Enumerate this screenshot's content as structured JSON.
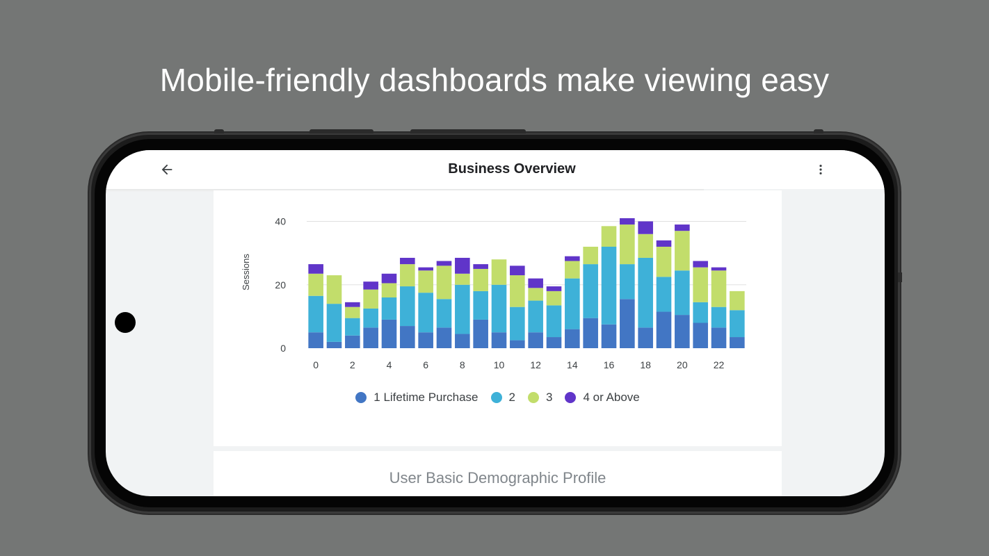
{
  "headline": "Mobile-friendly dashboards make viewing easy",
  "app_bar": {
    "title": "Business Overview",
    "back_icon": "arrow-back-icon",
    "menu_icon": "more-vert-icon"
  },
  "sections": {
    "demographic_title": "User Basic Demographic Profile"
  },
  "colors": {
    "series": [
      "#4276c4",
      "#3eb1d8",
      "#c2dd6b",
      "#6035c9"
    ],
    "background": "#747675",
    "grid": "#e0e0e0",
    "axis_text": "#3c4043"
  },
  "chart_data": {
    "type": "bar",
    "stacked": true,
    "ylabel": "Sessions",
    "xlabel": "",
    "ylim": [
      0,
      48
    ],
    "y_ticks": [
      "0",
      "20",
      "40"
    ],
    "grid": true,
    "legend_position": "bottom",
    "x_tick_labels": [
      "0",
      "2",
      "4",
      "6",
      "8",
      "10",
      "12",
      "14",
      "16",
      "18",
      "20",
      "22"
    ],
    "categories": [
      0,
      1,
      2,
      3,
      4,
      5,
      6,
      7,
      8,
      9,
      10,
      11,
      12,
      13,
      14,
      15,
      16,
      17,
      18,
      19,
      20,
      21,
      22,
      23
    ],
    "series": [
      {
        "name": "1 Lifetime Purchase",
        "values": [
          5,
          2,
          4,
          6.5,
          9,
          7,
          5,
          6.5,
          4.5,
          9,
          5,
          2.5,
          5,
          3.5,
          6,
          9.5,
          7.5,
          15.5,
          6.5,
          11.5,
          10.5,
          8,
          6.5,
          3.5
        ]
      },
      {
        "name": "2",
        "values": [
          11.5,
          12,
          5.5,
          6,
          7,
          12.5,
          12.5,
          9,
          15.5,
          9,
          15,
          10.5,
          10,
          10,
          16,
          17,
          24.5,
          11,
          22,
          11,
          14,
          6.5,
          6.5,
          8.5
        ]
      },
      {
        "name": "3",
        "values": [
          7,
          9,
          3.5,
          6,
          4.5,
          7,
          7,
          10.5,
          3.5,
          7,
          8,
          10,
          4,
          4.5,
          5.5,
          5.5,
          6.5,
          12.5,
          7.5,
          9.5,
          12.5,
          11,
          11.5,
          6
        ]
      },
      {
        "name": "4 or Above",
        "values": [
          3,
          0,
          1.5,
          2.5,
          3,
          2,
          1,
          1.5,
          5,
          1.5,
          0,
          3,
          3,
          1.5,
          1.5,
          0,
          0,
          2,
          4,
          2,
          2,
          2,
          1,
          0
        ]
      }
    ]
  }
}
